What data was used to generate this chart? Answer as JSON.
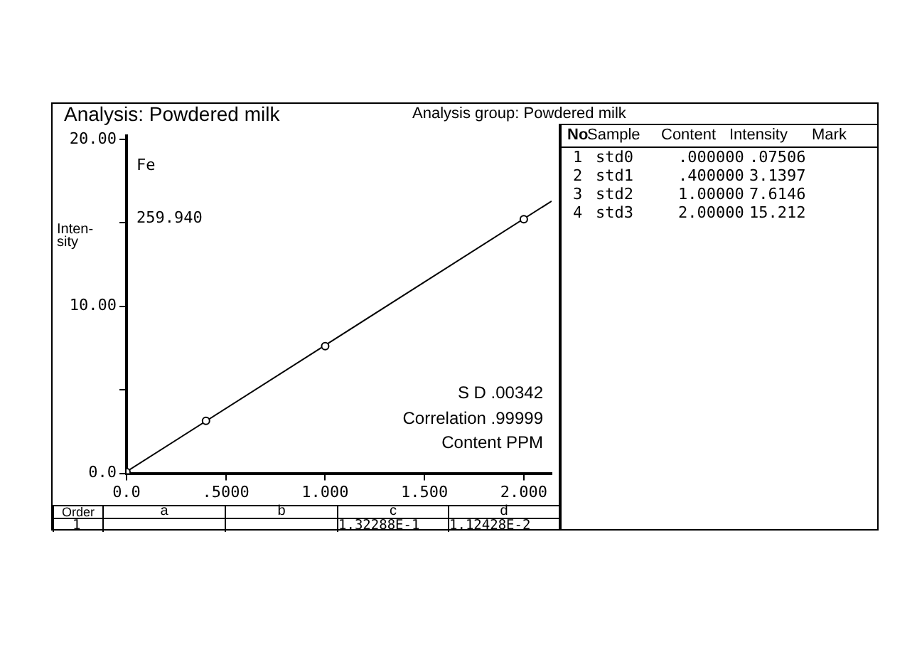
{
  "chart_data": {
    "type": "scatter",
    "title": "Analysis: Powdered milk",
    "subtitle": "Analysis group: Powdered milk",
    "xlabel": "Content PPM",
    "ylabel": "Inten-sity",
    "xlim": [
      0,
      2.14
    ],
    "ylim": [
      0,
      20.2
    ],
    "xticks": [
      {
        "value": 0,
        "label": "0.0"
      },
      {
        "value": 0.5,
        "label": ".5000"
      },
      {
        "value": 1,
        "label": "1.000"
      },
      {
        "value": 1.5,
        "label": "1.500"
      },
      {
        "value": 2,
        "label": "2.000"
      }
    ],
    "yticks": [
      {
        "value": 0,
        "label": "0.0"
      },
      {
        "value": 5,
        "label": null
      },
      {
        "value": 10,
        "label": "10.00"
      },
      {
        "value": 15,
        "label": null
      },
      {
        "value": 20,
        "label": "20.00"
      }
    ],
    "grid": false,
    "legend": false,
    "series": [
      {
        "type": "scatter",
        "marker": "circle",
        "color": "#000000",
        "x": [
          0,
          0.4,
          1,
          2
        ],
        "values": [
          0.07506,
          3.1397,
          7.6146,
          15.212
        ]
      },
      {
        "type": "line",
        "color": "#000000",
        "x": [
          0,
          2.14
        ],
        "values": [
          0.1,
          16.3
        ]
      }
    ],
    "annotations": [
      "Fe",
      "259.940",
      "S D .00342",
      "Correlation .99999",
      "No",
      "Sample",
      "Content",
      "Intensity",
      "Mark",
      "1",
      "std0",
      ".000000",
      ".07506",
      "2",
      "std1",
      ".400000",
      "3.1397",
      "3",
      "std2",
      "1.00000",
      "7.6146",
      "4",
      "std3",
      "2.00000",
      "15.212",
      "Order",
      "a",
      "b",
      "c",
      "d",
      "1",
      "1.32288E-1",
      "1.12428E-2"
    ]
  }
}
